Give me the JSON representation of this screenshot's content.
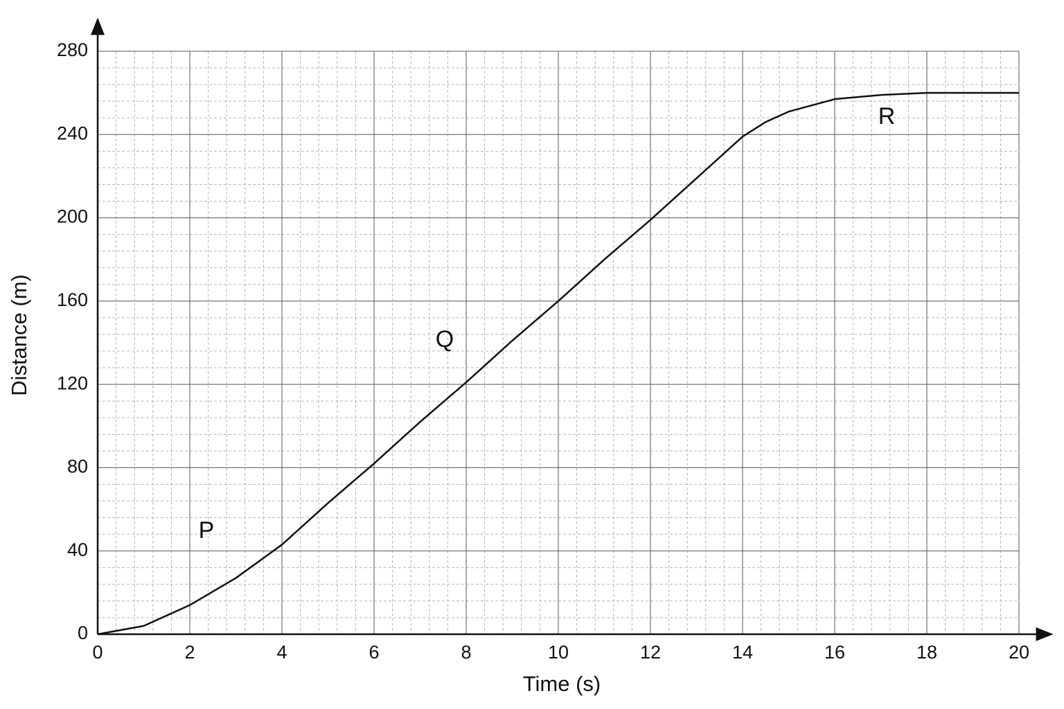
{
  "chart_data": {
    "type": "line",
    "x_label": "Time (s)",
    "y_label": "Distance (m)",
    "x": [
      0,
      1,
      2,
      3,
      4,
      5,
      6,
      7,
      8,
      9,
      10,
      11,
      12,
      13,
      14,
      14.5,
      15,
      15.5,
      16,
      17,
      18,
      19,
      20
    ],
    "series": [
      {
        "color": "#111111",
        "values": [
          0,
          4,
          14,
          27,
          43,
          63,
          82,
          102,
          121,
          141,
          160,
          180,
          199,
          219,
          239,
          246,
          251,
          254,
          257,
          259,
          260,
          260,
          260
        ]
      }
    ],
    "xlim": [
      0,
      20
    ],
    "ylim": [
      0,
      280
    ],
    "xticks": [
      0,
      2,
      4,
      6,
      8,
      10,
      12,
      14,
      16,
      18,
      20
    ],
    "yticks": [
      0,
      40,
      80,
      120,
      160,
      200,
      240,
      280
    ],
    "grid": true,
    "annotations": [
      "P",
      "Q",
      "R"
    ]
  }
}
